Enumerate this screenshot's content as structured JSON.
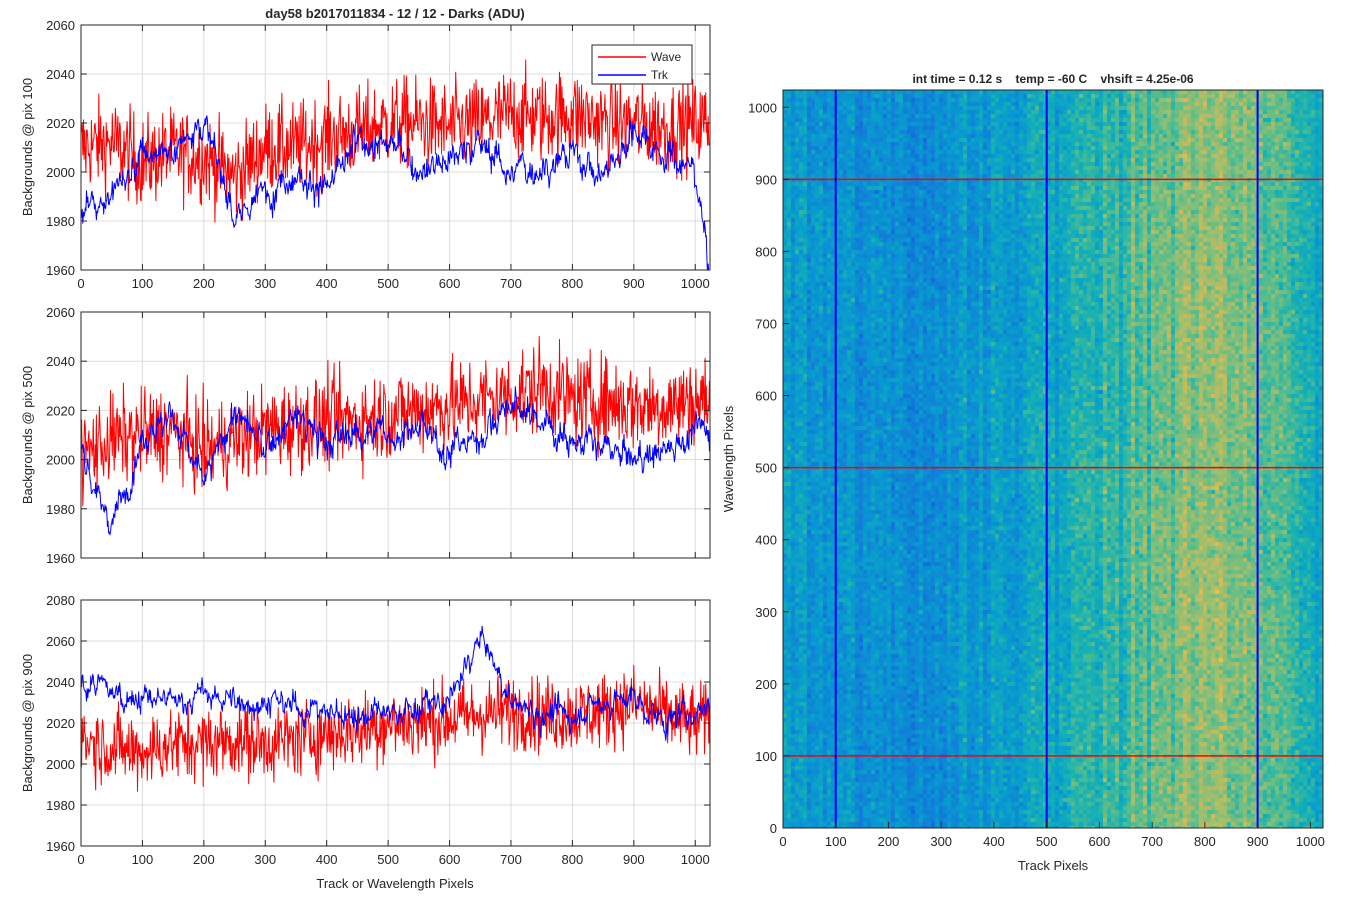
{
  "figure": {
    "title": "day58 b2017011834 - 12 / 12 - Darks (ADU)",
    "colors": {
      "wave": "#ff0000",
      "trk": "#0000ff",
      "grid": "#dcdcdc",
      "axis": "#262626"
    }
  },
  "chart_data": [
    {
      "type": "line",
      "title": "day58 b2017011834 - 12 / 12 - Darks (ADU)",
      "xlabel": "",
      "ylabel": "Backgrounds @ pix 100",
      "xlim": [
        0,
        1024
      ],
      "ylim": [
        1960,
        2060
      ],
      "xticks": [
        0,
        100,
        200,
        300,
        400,
        500,
        600,
        700,
        800,
        900,
        1000
      ],
      "yticks": [
        1960,
        1980,
        2000,
        2020,
        2040,
        2060
      ],
      "grid": true,
      "legend": {
        "position": "top-right",
        "entries": [
          "Wave",
          "Trk"
        ]
      },
      "series": [
        {
          "name": "Wave",
          "color": "#ff0000",
          "x": [
            0,
            50,
            100,
            150,
            200,
            250,
            300,
            350,
            400,
            450,
            500,
            550,
            600,
            650,
            700,
            750,
            800,
            850,
            900,
            950,
            1000,
            1024
          ],
          "values": [
            2010,
            2012,
            2004,
            2008,
            2006,
            1998,
            2010,
            2010,
            2014,
            2016,
            2020,
            2020,
            2018,
            2020,
            2024,
            2022,
            2024,
            2020,
            2020,
            2018,
            2020,
            2020
          ]
        },
        {
          "name": "Trk",
          "color": "#0000ff",
          "x": [
            0,
            50,
            100,
            150,
            200,
            250,
            300,
            350,
            400,
            450,
            500,
            550,
            600,
            650,
            700,
            750,
            800,
            850,
            900,
            950,
            1000,
            1024
          ],
          "values": [
            1985,
            1990,
            2005,
            2010,
            2022,
            1980,
            1992,
            2000,
            1992,
            2012,
            2012,
            2002,
            2006,
            2012,
            2000,
            2002,
            2008,
            1998,
            2018,
            2008,
            2000,
            1962
          ]
        }
      ]
    },
    {
      "type": "line",
      "xlabel": "",
      "ylabel": "Backgrounds @ pix 500",
      "xlim": [
        0,
        1024
      ],
      "ylim": [
        1960,
        2060
      ],
      "xticks": [
        0,
        100,
        200,
        300,
        400,
        500,
        600,
        700,
        800,
        900,
        1000
      ],
      "yticks": [
        1960,
        1980,
        2000,
        2020,
        2040,
        2060
      ],
      "grid": true,
      "series": [
        {
          "name": "Wave",
          "color": "#ff0000",
          "x": [
            0,
            50,
            100,
            150,
            200,
            250,
            300,
            350,
            400,
            450,
            500,
            550,
            600,
            650,
            700,
            750,
            800,
            850,
            900,
            950,
            1000,
            1024
          ],
          "values": [
            2002,
            2008,
            2010,
            2012,
            2004,
            2008,
            2012,
            2014,
            2016,
            2016,
            2018,
            2020,
            2022,
            2024,
            2026,
            2030,
            2024,
            2024,
            2022,
            2022,
            2024,
            2024
          ]
        },
        {
          "name": "Trk",
          "color": "#0000ff",
          "x": [
            0,
            50,
            100,
            150,
            200,
            250,
            300,
            350,
            400,
            450,
            500,
            550,
            600,
            650,
            700,
            750,
            800,
            850,
            900,
            950,
            1000,
            1024
          ],
          "values": [
            2005,
            1972,
            2010,
            2018,
            1990,
            2020,
            2004,
            2018,
            2006,
            2012,
            2010,
            2012,
            2004,
            2010,
            2022,
            2016,
            2008,
            2004,
            2000,
            2004,
            2012,
            2012
          ]
        }
      ]
    },
    {
      "type": "line",
      "xlabel": "Track or Wavelength Pixels",
      "ylabel": "Backgrounds @ pix 900",
      "xlim": [
        0,
        1024
      ],
      "ylim": [
        1960,
        2080
      ],
      "xticks": [
        0,
        100,
        200,
        300,
        400,
        500,
        600,
        700,
        800,
        900,
        1000
      ],
      "yticks": [
        1960,
        1980,
        2000,
        2020,
        2040,
        2060,
        2080
      ],
      "grid": true,
      "series": [
        {
          "name": "Wave",
          "color": "#ff0000",
          "x": [
            0,
            50,
            100,
            150,
            200,
            250,
            300,
            350,
            400,
            450,
            500,
            550,
            600,
            650,
            700,
            750,
            800,
            850,
            900,
            950,
            1000,
            1024
          ],
          "values": [
            2012,
            2008,
            2006,
            2010,
            2010,
            2012,
            2010,
            2012,
            2015,
            2016,
            2020,
            2020,
            2022,
            2024,
            2026,
            2024,
            2024,
            2026,
            2030,
            2024,
            2020,
            2022
          ]
        },
        {
          "name": "Trk",
          "color": "#0000ff",
          "x": [
            0,
            50,
            100,
            150,
            200,
            250,
            300,
            350,
            400,
            450,
            500,
            550,
            600,
            650,
            700,
            750,
            800,
            850,
            900,
            950,
            1000,
            1024
          ],
          "values": [
            2040,
            2035,
            2032,
            2030,
            2034,
            2030,
            2030,
            2028,
            2025,
            2024,
            2024,
            2028,
            2030,
            2062,
            2030,
            2024,
            2024,
            2030,
            2032,
            2020,
            2026,
            2030
          ]
        }
      ]
    },
    {
      "type": "heatmap",
      "title": "int time = 0.12 s    temp = -60 C    vhsift = 4.25e-06",
      "xlabel": "Track Pixels",
      "ylabel": "Wavelength Pixels",
      "xlim": [
        0,
        1024
      ],
      "ylim": [
        0,
        1024
      ],
      "xticks": [
        0,
        100,
        200,
        300,
        400,
        500,
        600,
        700,
        800,
        900,
        1000
      ],
      "yticks": [
        0,
        100,
        200,
        300,
        400,
        500,
        600,
        700,
        800,
        900,
        1000
      ],
      "colormap": "parula",
      "column_profile": {
        "x": [
          0,
          100,
          200,
          300,
          400,
          500,
          600,
          700,
          800,
          900,
          1024
        ],
        "level": [
          0.42,
          0.4,
          0.37,
          0.38,
          0.42,
          0.47,
          0.53,
          0.62,
          0.7,
          0.66,
          0.48
        ]
      },
      "marker_lines": {
        "vertical_x": [
          100,
          500,
          900
        ],
        "vertical_color": "#0000ff",
        "horizontal_y": [
          100,
          500,
          900
        ],
        "horizontal_color": "#ff0000"
      }
    }
  ]
}
